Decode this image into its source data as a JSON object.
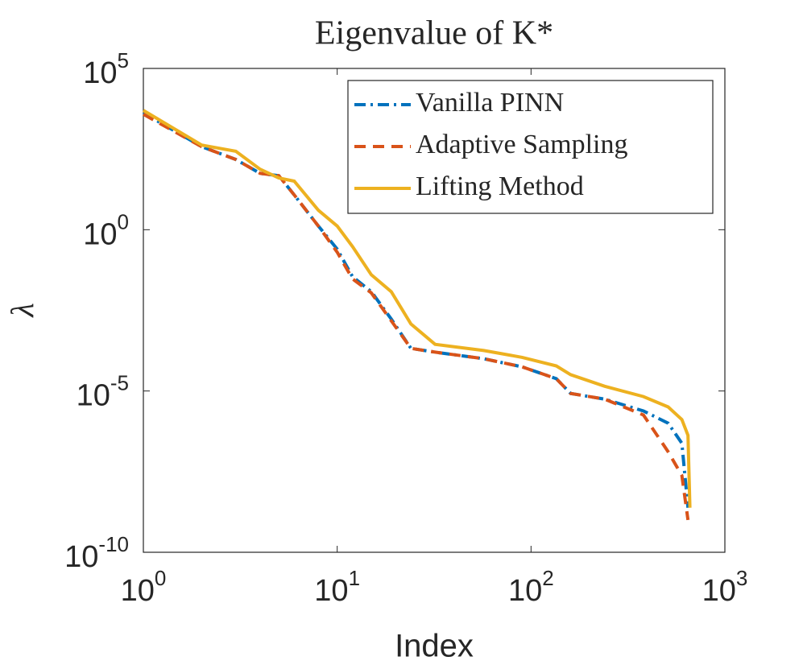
{
  "chart_data": {
    "type": "line",
    "title": "Eigenvalue of K*",
    "x_label": "Index",
    "y_label": "λ",
    "x": [
      1,
      2,
      3,
      4,
      5,
      6,
      8,
      10,
      12,
      15,
      19,
      24,
      32,
      57,
      90,
      135,
      160,
      240,
      380,
      510,
      600,
      645,
      660
    ],
    "series": [
      {
        "name": "Vanilla PINN",
        "color": "#0072BD",
        "linestyle": "dashdot",
        "values": [
          4200,
          376,
          150,
          56,
          47,
          12,
          1.3,
          0.25,
          0.035,
          0.012,
          0.0017,
          0.00021,
          0.00016,
          0.0001,
          5.6e-05,
          2.4e-05,
          8.4e-06,
          5.6e-06,
          2.4e-06,
          1e-06,
          2.4e-07,
          2.4e-09,
          null
        ]
      },
      {
        "name": "Adaptive Sampling",
        "color": "#D95319",
        "linestyle": "dashed",
        "values": [
          3800,
          376,
          150,
          56,
          47,
          12,
          1.3,
          0.2,
          0.03,
          0.011,
          0.0015,
          0.00021,
          0.00016,
          0.0001,
          5.6e-05,
          2.4e-05,
          8.4e-06,
          5.6e-06,
          1.8e-06,
          1.3e-07,
          2.4e-08,
          1e-09,
          null
        ]
      },
      {
        "name": "Lifting Method",
        "color": "#EDB120",
        "linestyle": "solid",
        "values": [
          5000,
          420,
          270,
          75,
          40,
          32,
          4,
          1.3,
          0.3,
          0.04,
          0.012,
          0.0012,
          0.00028,
          0.00018,
          0.00011,
          6e-05,
          3.2e-05,
          1.4e-05,
          6.7e-06,
          3.2e-06,
          1.3e-06,
          4.2e-07,
          2.4e-09
        ]
      }
    ],
    "xscale": "log",
    "yscale": "log",
    "xlim": [
      1,
      1000
    ],
    "ylim": [
      1e-10,
      100000
    ],
    "xticks": [
      {
        "value": 1,
        "label": "10^0"
      },
      {
        "value": 10,
        "label": "10^1"
      },
      {
        "value": 100,
        "label": "10^2"
      },
      {
        "value": 1000,
        "label": "10^3"
      }
    ],
    "yticks": [
      {
        "value": 1e-10,
        "label": "10^-10"
      },
      {
        "value": 1e-05,
        "label": "10^-5"
      },
      {
        "value": 1,
        "label": "10^0"
      },
      {
        "value": 100000,
        "label": "10^5"
      }
    ],
    "grid": false,
    "legend": "upper right"
  }
}
